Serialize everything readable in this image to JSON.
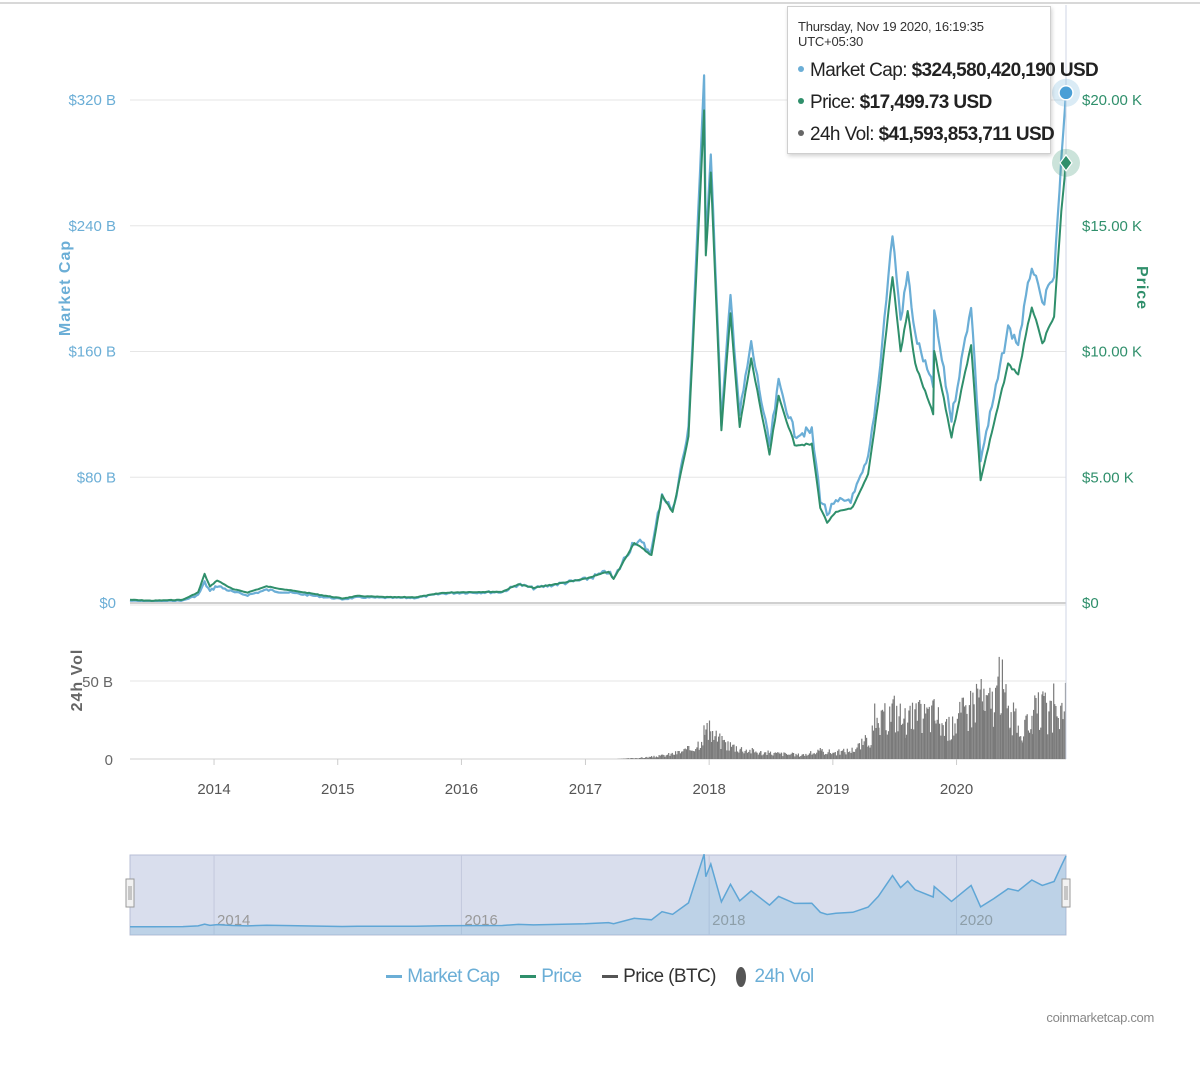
{
  "chart_data": {
    "type": "line",
    "x_axis": {
      "ticks": [
        "2014",
        "2015",
        "2016",
        "2017",
        "2018",
        "2019",
        "2020"
      ],
      "range": [
        "2013-04-28",
        "2020-11-19"
      ]
    },
    "y_axes": {
      "market_cap": {
        "label": "Market Cap",
        "ticks": [
          "$0",
          "$80 B",
          "$160 B",
          "$240 B",
          "$320 B"
        ],
        "range": [
          0,
          320
        ],
        "unit": "B USD"
      },
      "price": {
        "label": "Price",
        "ticks": [
          "$0",
          "$5.00 K",
          "$10.00 K",
          "$15.00 K",
          "$20.00 K"
        ],
        "range": [
          0,
          20
        ],
        "unit": "K USD"
      },
      "volume": {
        "label": "24h Vol",
        "ticks": [
          "0",
          "50 B"
        ],
        "unit": "B USD"
      }
    },
    "series": [
      {
        "name": "Market Cap",
        "color": "#6baed6",
        "points": [
          [
            "2013-04-28",
            1.5
          ],
          [
            "2013-07-01",
            1.0
          ],
          [
            "2013-10-01",
            1.6
          ],
          [
            "2013-11-15",
            5.0
          ],
          [
            "2013-12-04",
            13.0
          ],
          [
            "2013-12-20",
            7.5
          ],
          [
            "2014-01-10",
            11.0
          ],
          [
            "2014-02-25",
            7.0
          ],
          [
            "2014-04-10",
            5.0
          ],
          [
            "2014-06-05",
            8.3
          ],
          [
            "2014-08-15",
            6.5
          ],
          [
            "2014-10-15",
            4.8
          ],
          [
            "2015-01-14",
            2.4
          ],
          [
            "2015-03-01",
            3.6
          ],
          [
            "2015-06-01",
            3.3
          ],
          [
            "2015-08-20",
            3.3
          ],
          [
            "2015-11-05",
            6.0
          ],
          [
            "2016-01-01",
            6.6
          ],
          [
            "2016-05-01",
            7.0
          ],
          [
            "2016-06-17",
            11.8
          ],
          [
            "2016-08-01",
            9.4
          ],
          [
            "2016-12-31",
            15.0
          ],
          [
            "2017-03-10",
            20.0
          ],
          [
            "2017-03-25",
            15.0
          ],
          [
            "2017-05-25",
            40.0
          ],
          [
            "2017-07-15",
            33.0
          ],
          [
            "2017-08-15",
            70.0
          ],
          [
            "2017-09-15",
            58.0
          ],
          [
            "2017-11-01",
            110.0
          ],
          [
            "2017-12-17",
            333.0
          ],
          [
            "2017-12-22",
            230.0
          ],
          [
            "2018-01-06",
            288.0
          ],
          [
            "2018-02-06",
            115.0
          ],
          [
            "2018-03-05",
            195.0
          ],
          [
            "2018-04-01",
            120.0
          ],
          [
            "2018-05-05",
            165.0
          ],
          [
            "2018-06-28",
            100.0
          ],
          [
            "2018-07-25",
            140.0
          ],
          [
            "2018-09-10",
            108.0
          ],
          [
            "2018-10-31",
            109.0
          ],
          [
            "2018-11-25",
            67.0
          ],
          [
            "2018-12-15",
            57.0
          ],
          [
            "2019-01-10",
            63.0
          ],
          [
            "2019-03-01",
            67.0
          ],
          [
            "2019-04-15",
            91.0
          ],
          [
            "2019-05-15",
            140.0
          ],
          [
            "2019-06-26",
            235.0
          ],
          [
            "2019-07-20",
            180.0
          ],
          [
            "2019-08-10",
            210.0
          ],
          [
            "2019-09-01",
            170.0
          ],
          [
            "2019-10-24",
            137.0
          ],
          [
            "2019-10-27",
            185.0
          ],
          [
            "2019-12-17",
            117.0
          ],
          [
            "2020-02-13",
            190.0
          ],
          [
            "2020-03-12",
            92.0
          ],
          [
            "2020-04-20",
            130.0
          ],
          [
            "2020-06-01",
            175.0
          ],
          [
            "2020-07-01",
            165.0
          ],
          [
            "2020-08-10",
            215.0
          ],
          [
            "2020-09-10",
            190.0
          ],
          [
            "2020-10-15",
            208.0
          ],
          [
            "2020-11-05",
            280.0
          ],
          [
            "2020-11-19",
            324.58
          ]
        ]
      },
      {
        "name": "Price",
        "color": "#2f8f6b",
        "points": [
          [
            "2013-04-28",
            0.13
          ],
          [
            "2013-07-01",
            0.09
          ],
          [
            "2013-10-01",
            0.13
          ],
          [
            "2013-11-15",
            0.42
          ],
          [
            "2013-12-04",
            1.15
          ],
          [
            "2013-12-20",
            0.65
          ],
          [
            "2014-01-10",
            0.9
          ],
          [
            "2014-02-25",
            0.55
          ],
          [
            "2014-04-10",
            0.42
          ],
          [
            "2014-06-05",
            0.66
          ],
          [
            "2014-08-15",
            0.5
          ],
          [
            "2014-10-15",
            0.38
          ],
          [
            "2015-01-14",
            0.18
          ],
          [
            "2015-03-01",
            0.28
          ],
          [
            "2015-06-01",
            0.23
          ],
          [
            "2015-08-20",
            0.23
          ],
          [
            "2015-11-05",
            0.4
          ],
          [
            "2016-01-01",
            0.43
          ],
          [
            "2016-05-01",
            0.45
          ],
          [
            "2016-06-17",
            0.75
          ],
          [
            "2016-08-01",
            0.6
          ],
          [
            "2016-12-31",
            0.96
          ],
          [
            "2017-03-10",
            1.25
          ],
          [
            "2017-03-25",
            0.95
          ],
          [
            "2017-05-25",
            2.4
          ],
          [
            "2017-07-15",
            1.9
          ],
          [
            "2017-08-15",
            4.3
          ],
          [
            "2017-09-15",
            3.6
          ],
          [
            "2017-11-01",
            6.6
          ],
          [
            "2017-12-17",
            19.5
          ],
          [
            "2017-12-22",
            13.8
          ],
          [
            "2018-01-06",
            17.2
          ],
          [
            "2018-02-06",
            6.9
          ],
          [
            "2018-03-05",
            11.5
          ],
          [
            "2018-04-01",
            7.0
          ],
          [
            "2018-05-05",
            9.7
          ],
          [
            "2018-06-28",
            5.9
          ],
          [
            "2018-07-25",
            8.2
          ],
          [
            "2018-09-10",
            6.3
          ],
          [
            "2018-10-31",
            6.3
          ],
          [
            "2018-11-25",
            3.8
          ],
          [
            "2018-12-15",
            3.2
          ],
          [
            "2019-01-10",
            3.6
          ],
          [
            "2019-03-01",
            3.8
          ],
          [
            "2019-04-15",
            5.1
          ],
          [
            "2019-05-15",
            8.0
          ],
          [
            "2019-06-26",
            13.0
          ],
          [
            "2019-07-20",
            10.0
          ],
          [
            "2019-08-10",
            11.6
          ],
          [
            "2019-09-01",
            9.5
          ],
          [
            "2019-10-24",
            7.5
          ],
          [
            "2019-10-27",
            10.0
          ],
          [
            "2019-12-17",
            6.6
          ],
          [
            "2020-02-13",
            10.3
          ],
          [
            "2020-03-12",
            4.9
          ],
          [
            "2020-04-20",
            7.1
          ],
          [
            "2020-06-01",
            9.5
          ],
          [
            "2020-07-01",
            9.1
          ],
          [
            "2020-08-10",
            11.8
          ],
          [
            "2020-09-10",
            10.3
          ],
          [
            "2020-10-15",
            11.4
          ],
          [
            "2020-11-05",
            15.5
          ],
          [
            "2020-11-19",
            17.5
          ]
        ]
      },
      {
        "name": "24h Vol",
        "color": "#777777",
        "points": [
          [
            "2013-04-28",
            0
          ],
          [
            "2017-04-01",
            0
          ],
          [
            "2017-06-15",
            1
          ],
          [
            "2017-08-01",
            2
          ],
          [
            "2017-09-15",
            4
          ],
          [
            "2017-11-10",
            8
          ],
          [
            "2017-12-01",
            13
          ],
          [
            "2017-12-17",
            22
          ],
          [
            "2018-01-06",
            20
          ],
          [
            "2018-02-06",
            13
          ],
          [
            "2018-04-01",
            8
          ],
          [
            "2018-06-01",
            5
          ],
          [
            "2018-08-01",
            4
          ],
          [
            "2018-10-01",
            3
          ],
          [
            "2018-11-25",
            6
          ],
          [
            "2019-01-10",
            5
          ],
          [
            "2019-03-01",
            7
          ],
          [
            "2019-04-15",
            15
          ],
          [
            "2019-05-15",
            25
          ],
          [
            "2019-06-26",
            38
          ],
          [
            "2019-08-01",
            30
          ],
          [
            "2019-10-27",
            35
          ],
          [
            "2019-12-01",
            22
          ],
          [
            "2020-02-13",
            42
          ],
          [
            "2020-03-12",
            55
          ],
          [
            "2020-03-20",
            40
          ],
          [
            "2020-04-20",
            45
          ],
          [
            "2020-05-10",
            60
          ],
          [
            "2020-06-01",
            35
          ],
          [
            "2020-07-15",
            20
          ],
          [
            "2020-08-10",
            33
          ],
          [
            "2020-09-10",
            38
          ],
          [
            "2020-10-15",
            30
          ],
          [
            "2020-11-05",
            38
          ],
          [
            "2020-11-19",
            41.59
          ]
        ]
      }
    ],
    "tooltip": {
      "header": "Thursday, Nov 19 2020, 16:19:35 UTC+05:30",
      "rows": [
        {
          "label": "Market Cap: ",
          "value": "$324,580,420,190 USD",
          "color": "#6baed6"
        },
        {
          "label": "Price: ",
          "value": "$17,499.73 USD",
          "color": "#2f8f6b"
        },
        {
          "label": "24h Vol: ",
          "value": "$41,593,853,711 USD",
          "color": "#666666"
        }
      ]
    },
    "navigator": {
      "ticks": [
        "2014",
        "2016",
        "2018",
        "2020"
      ]
    },
    "legend": [
      {
        "name": "Market Cap",
        "color": "#6baed6"
      },
      {
        "name": "Price",
        "color": "#2f8f6b"
      },
      {
        "name": "Price (BTC)",
        "color": "#555555"
      },
      {
        "name": "24h Vol",
        "color": "#6baed6"
      }
    ],
    "credits": "coinmarketcap.com"
  }
}
